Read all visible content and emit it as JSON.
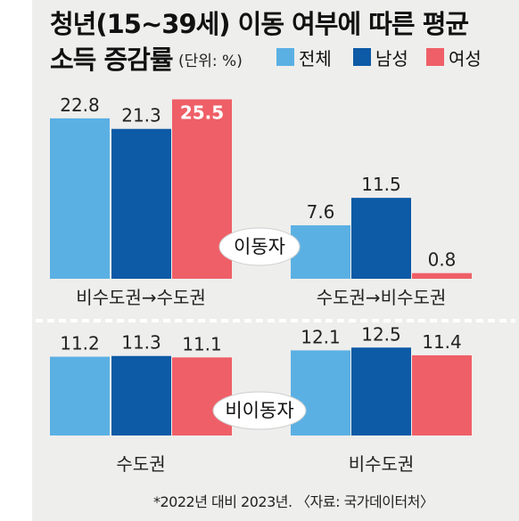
{
  "title_line1": "청년(15~39세) 이동 여부에 따른 평균",
  "title_line2": "소득 증감률",
  "unit": "(단위: %)",
  "legend": [
    {
      "label": "전체",
      "color": "#5bb0e3"
    },
    {
      "label": "남성",
      "color": "#0d5aa6"
    },
    {
      "label": "여성",
      "color": "#ef5f67"
    }
  ],
  "footnote": "*2022년 대비 2023년. 〈자료: 국가데이터처〉",
  "chart_data": [
    {
      "type": "bar",
      "panel_label": "이동자",
      "categories": [
        "비수도권→수도권",
        "수도권→비수도권"
      ],
      "series": [
        {
          "name": "전체",
          "values": [
            22.8,
            7.6
          ]
        },
        {
          "name": "남성",
          "values": [
            21.3,
            11.5
          ]
        },
        {
          "name": "여성",
          "values": [
            25.5,
            0.8
          ]
        }
      ]
    },
    {
      "type": "bar",
      "panel_label": "비이동자",
      "categories": [
        "수도권",
        "비수도권"
      ],
      "series": [
        {
          "name": "전체",
          "values": [
            11.2,
            12.1
          ]
        },
        {
          "name": "남성",
          "values": [
            11.3,
            12.5
          ]
        },
        {
          "name": "여성",
          "values": [
            11.1,
            11.4
          ]
        }
      ]
    }
  ]
}
